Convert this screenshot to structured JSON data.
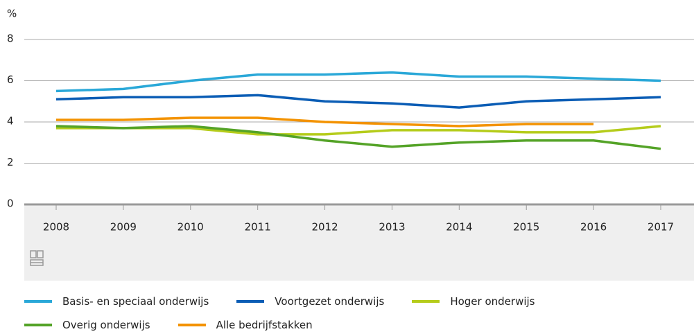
{
  "chart_data": {
    "type": "line",
    "y_unit": "%",
    "categories": [
      "2008",
      "2009",
      "2010",
      "2011",
      "2012",
      "2013",
      "2014",
      "2015",
      "2016",
      "2017"
    ],
    "series": [
      {
        "name": "Basis- en speciaal onderwijs",
        "color": "#2aa8d8",
        "values": [
          5.5,
          5.6,
          6.0,
          6.3,
          6.3,
          6.4,
          6.2,
          6.2,
          6.1,
          6.0
        ]
      },
      {
        "name": "Voortgezet onderwijs",
        "color": "#0b5db5",
        "values": [
          5.1,
          5.2,
          5.2,
          5.3,
          5.0,
          4.9,
          4.7,
          5.0,
          5.1,
          5.2
        ]
      },
      {
        "name": "Hoger onderwijs",
        "color": "#b5cc1b",
        "values": [
          3.7,
          3.7,
          3.7,
          3.4,
          3.4,
          3.6,
          3.6,
          3.5,
          3.5,
          3.8
        ]
      },
      {
        "name": "Overig onderwijs",
        "color": "#54a327",
        "values": [
          3.8,
          3.7,
          3.8,
          3.5,
          3.1,
          2.8,
          3.0,
          3.1,
          3.1,
          2.7
        ]
      },
      {
        "name": "Alle bedrijfstakken",
        "color": "#f39200",
        "values": [
          4.1,
          4.1,
          4.2,
          4.2,
          4.0,
          3.9,
          3.8,
          3.9,
          3.9,
          null
        ]
      }
    ],
    "ylim": [
      0,
      8
    ],
    "yticks": [
      0,
      2,
      4,
      6,
      8
    ],
    "grid": true
  }
}
